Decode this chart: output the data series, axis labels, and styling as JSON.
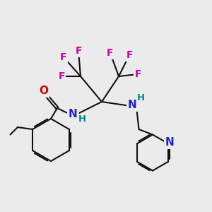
{
  "bg_color": "#ebebeb",
  "atom_colors": {
    "F": "#cc00aa",
    "N": "#2222cc",
    "O": "#cc0000",
    "H": "#008888",
    "C": "#111111"
  },
  "bond_color": "#111111",
  "bond_width": 1.5,
  "font_size_atom": 11,
  "font_size_small": 9.5,
  "font_size_F": 10
}
